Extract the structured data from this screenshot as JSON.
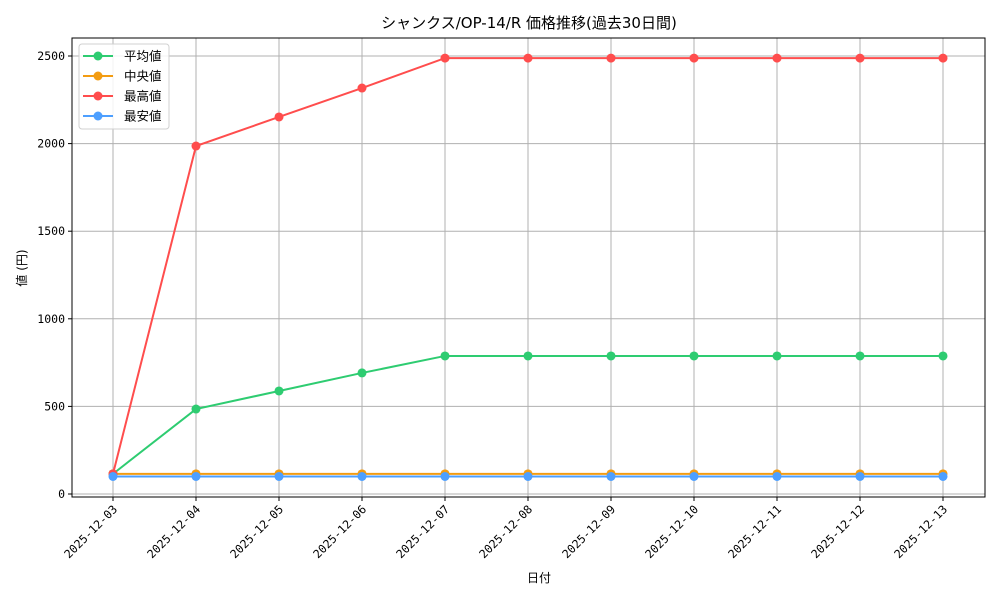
{
  "chart_data": {
    "type": "line",
    "title": "シャンクス/OP-14/R 価格推移(過去30日間)",
    "xlabel": "日付",
    "ylabel": "値 (円)",
    "x": [
      "2025-12-03",
      "2025-12-04",
      "2025-12-05",
      "2025-12-06",
      "2025-12-07",
      "2025-12-08",
      "2025-12-09",
      "2025-12-10",
      "2025-12-11",
      "2025-12-12",
      "2025-12-13"
    ],
    "yticks": [
      0,
      500,
      1000,
      1500,
      2000,
      2500
    ],
    "ylim": [
      -30,
      2610
    ],
    "grid": true,
    "legend_position": "upper left",
    "series": [
      {
        "name": "平均値",
        "color": "#2ecc71",
        "values": [
          115,
          485,
          588,
          691,
          788,
          788,
          788,
          788,
          788,
          788,
          788
        ]
      },
      {
        "name": "中央値",
        "color": "#f39c12",
        "values": [
          115,
          115,
          115,
          115,
          115,
          115,
          115,
          115,
          115,
          115,
          115
        ]
      },
      {
        "name": "最高値",
        "color": "#ff4d4d",
        "values": [
          115,
          1986,
          2152,
          2317,
          2488,
          2488,
          2488,
          2488,
          2488,
          2488,
          2488
        ]
      },
      {
        "name": "最安値",
        "color": "#4d9fff",
        "values": [
          100,
          100,
          100,
          100,
          100,
          100,
          100,
          100,
          100,
          100,
          100
        ]
      }
    ]
  }
}
